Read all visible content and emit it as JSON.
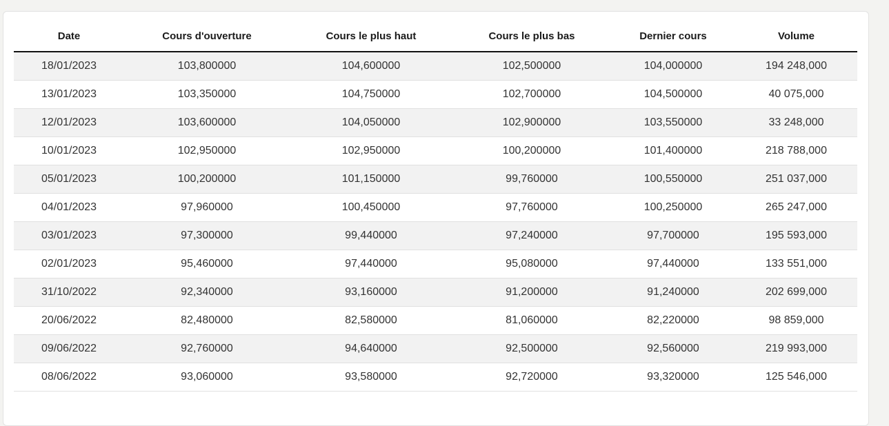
{
  "table": {
    "headers": [
      "Date",
      "Cours d'ouverture",
      "Cours le plus haut",
      "Cours le plus bas",
      "Dernier cours",
      "Volume"
    ],
    "rows": [
      [
        "18/01/2023",
        "103,800000",
        "104,600000",
        "102,500000",
        "104,000000",
        "194 248,000"
      ],
      [
        "13/01/2023",
        "103,350000",
        "104,750000",
        "102,700000",
        "104,500000",
        "40 075,000"
      ],
      [
        "12/01/2023",
        "103,600000",
        "104,050000",
        "102,900000",
        "103,550000",
        "33 248,000"
      ],
      [
        "10/01/2023",
        "102,950000",
        "102,950000",
        "100,200000",
        "101,400000",
        "218 788,000"
      ],
      [
        "05/01/2023",
        "100,200000",
        "101,150000",
        "99,760000",
        "100,550000",
        "251 037,000"
      ],
      [
        "04/01/2023",
        "97,960000",
        "100,450000",
        "97,760000",
        "100,250000",
        "265 247,000"
      ],
      [
        "03/01/2023",
        "97,300000",
        "99,440000",
        "97,240000",
        "97,700000",
        "195 593,000"
      ],
      [
        "02/01/2023",
        "95,460000",
        "97,440000",
        "95,080000",
        "97,440000",
        "133 551,000"
      ],
      [
        "31/10/2022",
        "92,340000",
        "93,160000",
        "91,200000",
        "91,240000",
        "202 699,000"
      ],
      [
        "20/06/2022",
        "82,480000",
        "82,580000",
        "81,060000",
        "82,220000",
        "98 859,000"
      ],
      [
        "09/06/2022",
        "92,760000",
        "94,640000",
        "92,500000",
        "92,560000",
        "219 993,000"
      ],
      [
        "08/06/2022",
        "93,060000",
        "93,580000",
        "92,720000",
        "93,320000",
        "125 546,000"
      ]
    ]
  }
}
